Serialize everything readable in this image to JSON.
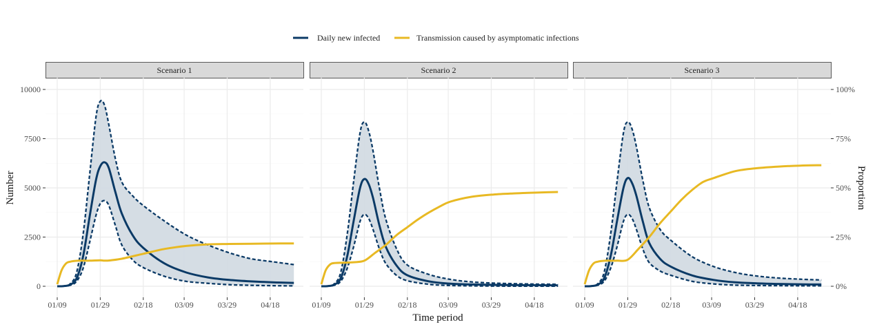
{
  "chart_data": {
    "type": "line",
    "xlabel": "Time period",
    "ylabel": "Number",
    "ylabel_right": "Proportion",
    "ylim": [
      0,
      10000
    ],
    "ylim_right": [
      0,
      1
    ],
    "x_tick_labels": [
      "01/09",
      "01/29",
      "02/18",
      "03/09",
      "03/29",
      "04/18"
    ],
    "x_tick_days": [
      0,
      20,
      40,
      59,
      79,
      99
    ],
    "y_ticks": [
      0,
      2500,
      5000,
      7500,
      10000
    ],
    "y_tick_labels": [
      "0",
      "2500",
      "5000",
      "7500",
      "10000"
    ],
    "y_right_tick_labels": [
      "0%",
      "25%",
      "50%",
      "75%",
      "100%"
    ],
    "grid": true,
    "legend": {
      "placement": "top",
      "entries": [
        {
          "label": "Daily new infected",
          "color": "#0b3a66"
        },
        {
          "label": "Transmission caused by asymptomatic infections",
          "color": "#e8b923"
        }
      ]
    },
    "colors": {
      "mean": "#0b3a66",
      "band": "#d3dbe3",
      "proportion": "#e8b923",
      "strip": "#d9d9d9"
    },
    "x_unit": "days since 01/09",
    "panels": [
      {
        "title": "Scenario 1",
        "days": [
          0,
          3,
          6,
          9,
          12,
          15,
          18,
          20,
          22,
          24,
          27,
          30,
          35,
          40,
          50,
          60,
          70,
          80,
          90,
          100,
          110
        ],
        "mean": [
          0,
          10,
          80,
          400,
          1500,
          3500,
          5400,
          6100,
          6300,
          6000,
          4800,
          3700,
          2600,
          1950,
          1150,
          700,
          450,
          320,
          250,
          200,
          170
        ],
        "upper": [
          0,
          15,
          120,
          700,
          2600,
          5600,
          8600,
          9400,
          9200,
          8200,
          6500,
          5300,
          4600,
          4100,
          3300,
          2600,
          2100,
          1700,
          1400,
          1250,
          1100
        ],
        "lower": [
          0,
          5,
          50,
          250,
          900,
          2200,
          3600,
          4200,
          4350,
          4100,
          3100,
          2100,
          1350,
          950,
          500,
          250,
          150,
          80,
          50,
          30,
          20
        ],
        "proportion_days": [
          0,
          2,
          4,
          6,
          10,
          15,
          20,
          22,
          25,
          30,
          40,
          50,
          60,
          70,
          80,
          90,
          100,
          110
        ],
        "proportion": [
          0.01,
          0.08,
          0.115,
          0.125,
          0.13,
          0.13,
          0.132,
          0.13,
          0.132,
          0.14,
          0.165,
          0.19,
          0.205,
          0.213,
          0.215,
          0.216,
          0.217,
          0.218
        ]
      },
      {
        "title": "Scenario 2",
        "days": [
          0,
          3,
          6,
          9,
          12,
          15,
          18,
          20,
          22,
          24,
          27,
          30,
          35,
          40,
          50,
          60,
          70,
          80,
          90,
          100,
          110
        ],
        "mean": [
          0,
          10,
          80,
          400,
          1500,
          3300,
          5000,
          5450,
          5200,
          4500,
          3100,
          2000,
          1050,
          560,
          250,
          130,
          90,
          70,
          60,
          55,
          50
        ],
        "upper": [
          0,
          15,
          120,
          700,
          2600,
          5300,
          7800,
          8350,
          7900,
          6900,
          5000,
          3400,
          1900,
          1080,
          600,
          350,
          220,
          160,
          130,
          110,
          100
        ],
        "lower": [
          0,
          5,
          50,
          250,
          900,
          2000,
          3300,
          3650,
          3450,
          2900,
          1900,
          1150,
          550,
          280,
          100,
          40,
          20,
          10,
          5,
          5,
          5
        ],
        "proportion_days": [
          0,
          2,
          4,
          6,
          10,
          15,
          20,
          25,
          30,
          35,
          40,
          45,
          50,
          55,
          60,
          70,
          80,
          90,
          100,
          110
        ],
        "proportion": [
          0.01,
          0.08,
          0.11,
          0.118,
          0.12,
          0.122,
          0.13,
          0.17,
          0.21,
          0.26,
          0.3,
          0.34,
          0.375,
          0.405,
          0.43,
          0.455,
          0.466,
          0.472,
          0.476,
          0.479
        ]
      },
      {
        "title": "Scenario 3",
        "days": [
          0,
          3,
          6,
          9,
          12,
          15,
          18,
          20,
          22,
          24,
          27,
          30,
          35,
          40,
          50,
          60,
          70,
          80,
          90,
          100,
          110
        ],
        "mean": [
          0,
          10,
          80,
          400,
          1500,
          3300,
          5000,
          5500,
          5250,
          4600,
          3300,
          2200,
          1400,
          1000,
          550,
          320,
          200,
          150,
          120,
          100,
          90
        ],
        "upper": [
          0,
          15,
          120,
          700,
          2600,
          5300,
          7800,
          8350,
          8000,
          7100,
          5400,
          4000,
          2900,
          2340,
          1500,
          1000,
          700,
          520,
          420,
          360,
          320
        ],
        "lower": [
          0,
          5,
          50,
          250,
          900,
          2000,
          3300,
          3650,
          3450,
          2900,
          1900,
          1200,
          780,
          560,
          250,
          120,
          60,
          40,
          30,
          25,
          20
        ],
        "proportion_days": [
          0,
          2,
          4,
          6,
          10,
          15,
          20,
          25,
          30,
          35,
          40,
          45,
          50,
          55,
          60,
          70,
          80,
          90,
          100,
          110
        ],
        "proportion": [
          0.01,
          0.08,
          0.115,
          0.125,
          0.13,
          0.13,
          0.135,
          0.19,
          0.25,
          0.32,
          0.38,
          0.44,
          0.49,
          0.53,
          0.55,
          0.585,
          0.6,
          0.608,
          0.613,
          0.615
        ]
      }
    ]
  }
}
